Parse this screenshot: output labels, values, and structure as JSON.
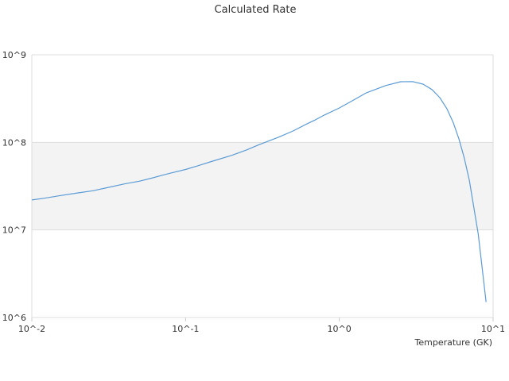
{
  "chart_data": {
    "type": "line",
    "title": "Calculated Rate",
    "xlabel": "Temperature (GK)",
    "ylabel": "",
    "x_scale": "log",
    "y_scale": "log",
    "xlim": [
      0.01,
      10
    ],
    "ylim": [
      1000000,
      1000000000
    ],
    "x_ticks": [
      {
        "value": 0.01,
        "label": "10^-2"
      },
      {
        "value": 0.1,
        "label": "10^-1"
      },
      {
        "value": 1,
        "label": "10^0"
      },
      {
        "value": 10,
        "label": "10^1"
      }
    ],
    "y_ticks": [
      {
        "value": 1000000,
        "label": "10^6"
      },
      {
        "value": 10000000,
        "label": "10^7"
      },
      {
        "value": 100000000,
        "label": "10^8"
      },
      {
        "value": 1000000000,
        "label": "10^9"
      }
    ],
    "grid": true,
    "legend": "none",
    "line_color": "#5b9bd5",
    "band_color": "#f3f3f3",
    "series": [
      {
        "x": [
          0.01,
          0.012,
          0.015,
          0.02,
          0.025,
          0.03,
          0.04,
          0.05,
          0.06,
          0.07,
          0.08,
          0.1,
          0.12,
          0.15,
          0.2,
          0.25,
          0.3,
          0.4,
          0.5,
          0.6,
          0.7,
          0.8,
          1.0,
          1.2,
          1.5,
          2.0,
          2.5,
          3.0,
          3.5,
          4.0,
          4.5,
          5.0,
          5.5,
          6.0,
          6.5,
          7.0,
          8.0,
          9.0
        ],
        "y": [
          22000000,
          23000000,
          24500000,
          26500000,
          28000000,
          30000000,
          33500000,
          36000000,
          39000000,
          42000000,
          44500000,
          49000000,
          54000000,
          61000000,
          71000000,
          82000000,
          94000000,
          114000000,
          135000000,
          159000000,
          181000000,
          205000000,
          247000000,
          295000000,
          368000000,
          445000000,
          492000000,
          494000000,
          462000000,
          401000000,
          324000000,
          243000000,
          169000000,
          109000000,
          66000000,
          37000000,
          9000000,
          1500000
        ]
      }
    ]
  }
}
